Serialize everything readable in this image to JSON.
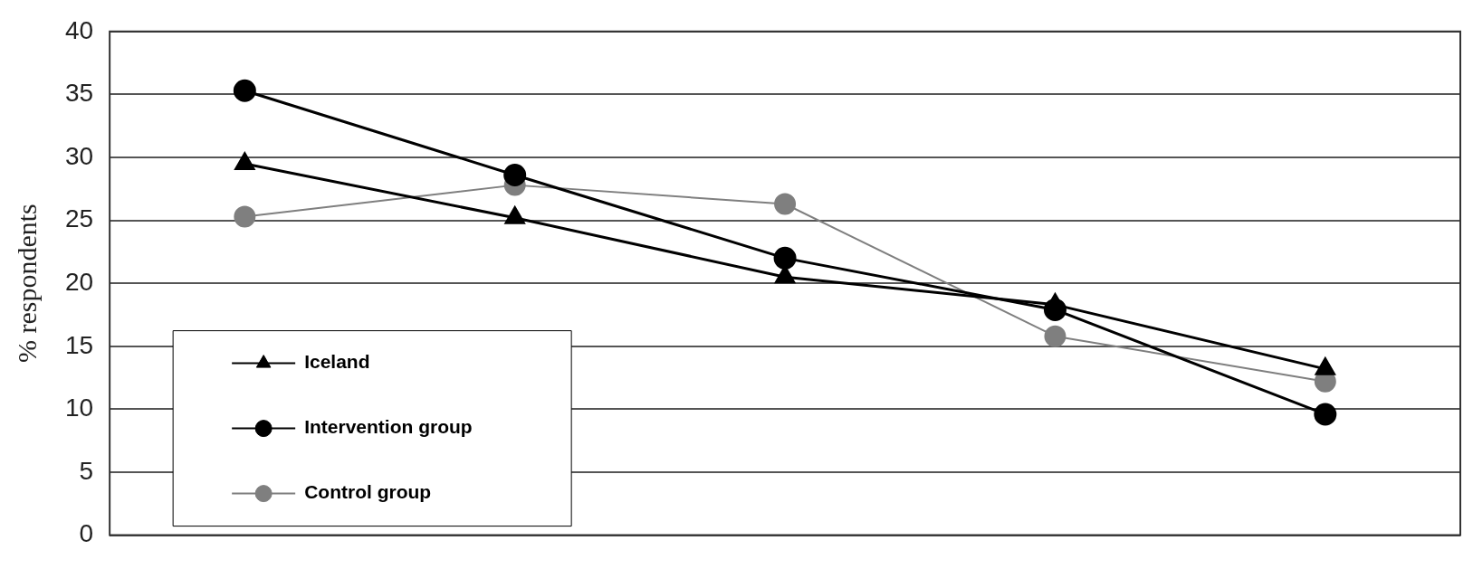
{
  "chart_data": {
    "type": "line",
    "ylabel": "% respondents",
    "categories": [
      null,
      null,
      null,
      null,
      null
    ],
    "series": [
      {
        "name": "Iceland",
        "color": "#000000",
        "marker": "triangle",
        "values": [
          29.5,
          25.2,
          20.5,
          18.3,
          13.2
        ]
      },
      {
        "name": "Intervention group",
        "color": "#000000",
        "marker": "circle",
        "values": [
          35.3,
          28.6,
          22.0,
          17.9,
          9.6
        ]
      },
      {
        "name": "Control group",
        "color": "#7f7f7f",
        "marker": "circle",
        "values": [
          25.3,
          27.8,
          26.3,
          15.8,
          12.2
        ]
      }
    ],
    "ylim": [
      0,
      40
    ],
    "yticks": [
      0,
      5,
      10,
      15,
      20,
      25,
      30,
      35,
      40
    ],
    "grid": "y",
    "legend": "bottom left"
  }
}
